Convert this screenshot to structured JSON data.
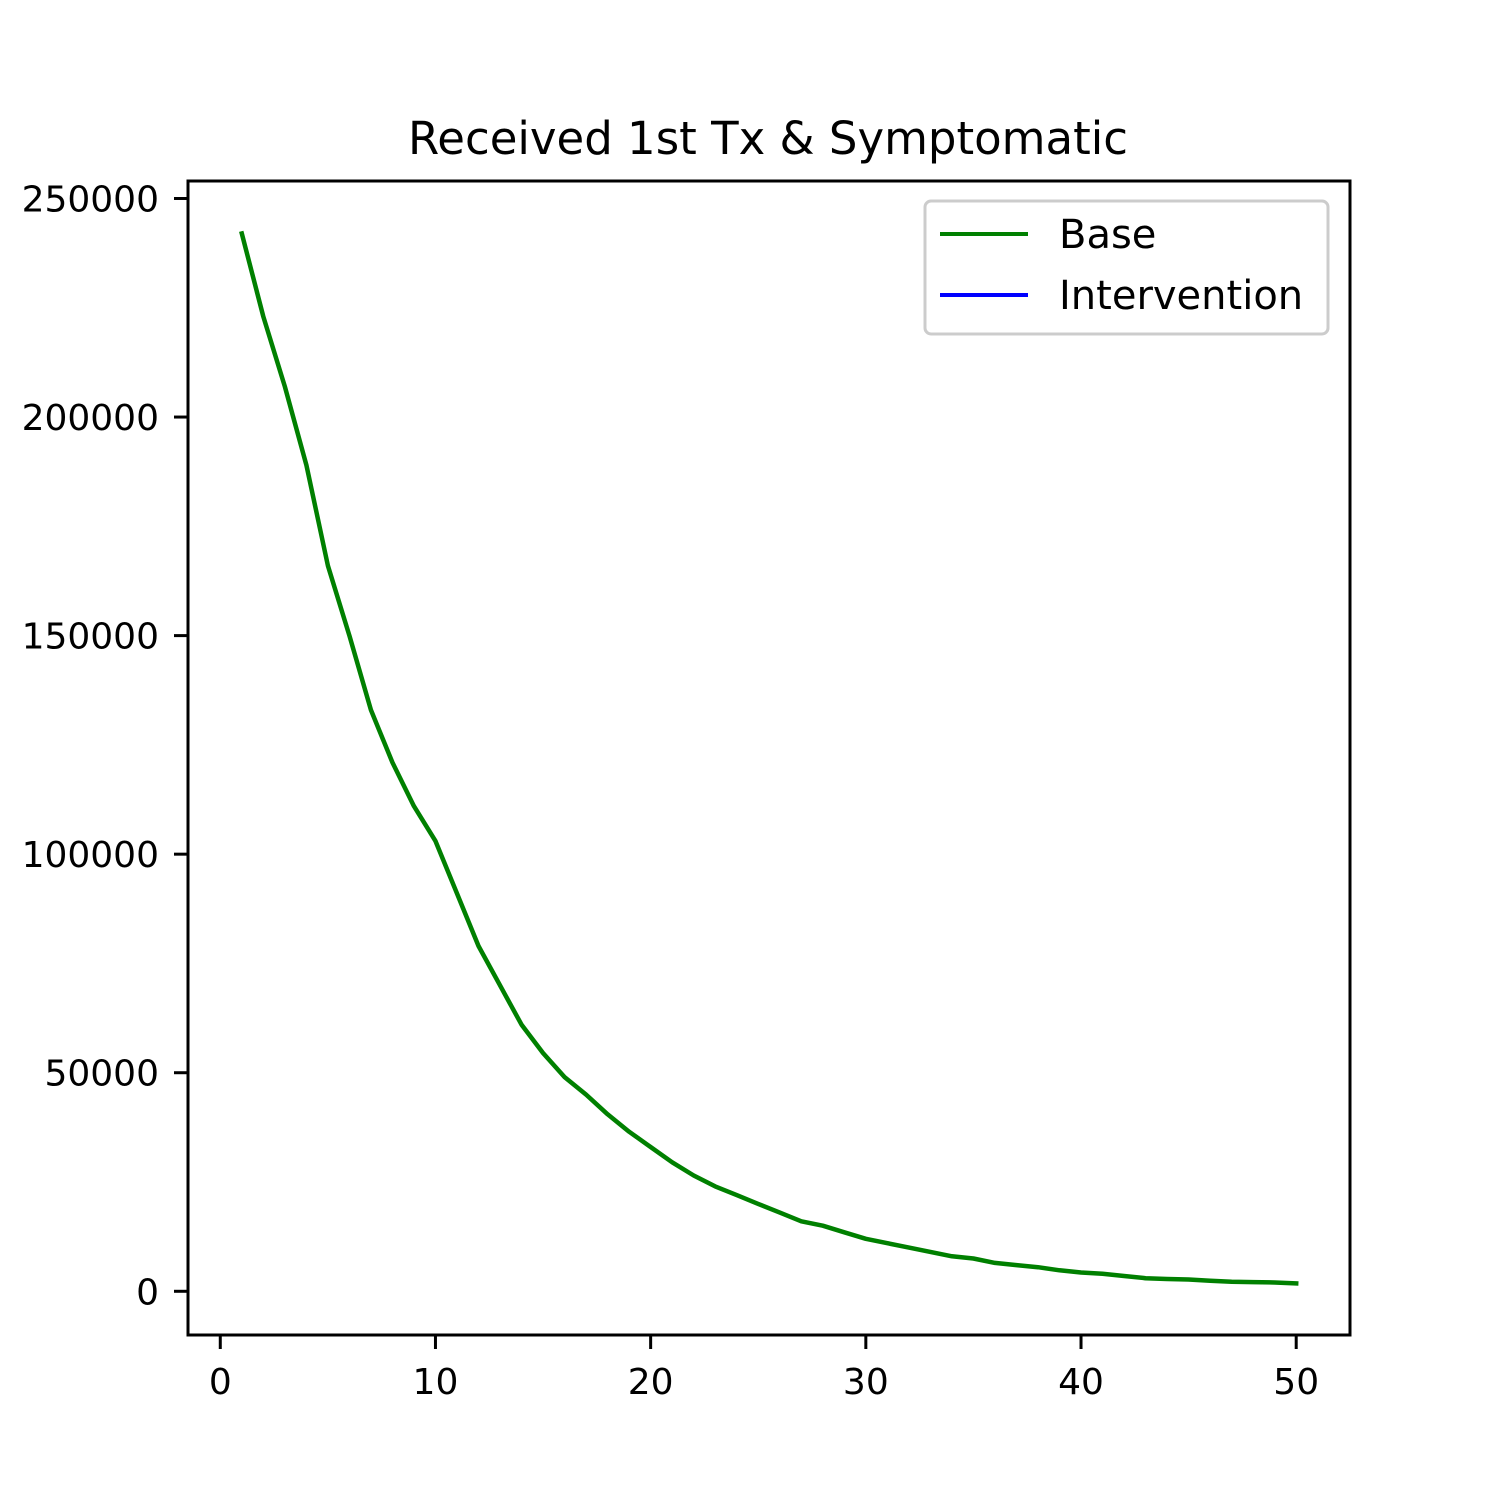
{
  "chart_data": {
    "type": "line",
    "title": "Received 1st Tx & Symptomatic",
    "xlabel": "",
    "ylabel": "",
    "xlim": [
      -1.5,
      52.5
    ],
    "ylim": [
      -10000,
      254000
    ],
    "x_ticks": [
      0,
      10,
      20,
      30,
      40,
      50
    ],
    "y_ticks": [
      0,
      50000,
      100000,
      150000,
      200000,
      250000
    ],
    "grid": false,
    "legend_position": "top-right",
    "series": [
      {
        "name": "Base",
        "color": "#008000",
        "x": [
          1,
          2,
          3,
          4,
          5,
          6,
          7,
          8,
          9,
          10,
          11,
          12,
          13,
          14,
          15,
          16,
          17,
          18,
          19,
          20,
          21,
          22,
          23,
          24,
          25,
          26,
          27,
          28,
          29,
          30,
          31,
          32,
          33,
          34,
          35,
          36,
          37,
          38,
          39,
          40,
          41,
          42,
          43,
          44,
          45,
          46,
          47,
          48,
          49,
          50
        ],
        "values": [
          242000,
          223000,
          207000,
          189000,
          166000,
          150000,
          133000,
          121000,
          111000,
          103000,
          91000,
          79000,
          70000,
          61000,
          54500,
          49000,
          45000,
          40500,
          36500,
          33000,
          29500,
          26500,
          24000,
          22000,
          20000,
          18000,
          16000,
          15000,
          13500,
          12000,
          11000,
          10000,
          9000,
          8000,
          7500,
          6500,
          6000,
          5500,
          4800,
          4300,
          4000,
          3500,
          3000,
          2800,
          2700,
          2400,
          2200,
          2100,
          2000,
          1800
        ]
      },
      {
        "name": "Intervention",
        "color": "#0000ff",
        "x": [],
        "values": []
      }
    ]
  }
}
